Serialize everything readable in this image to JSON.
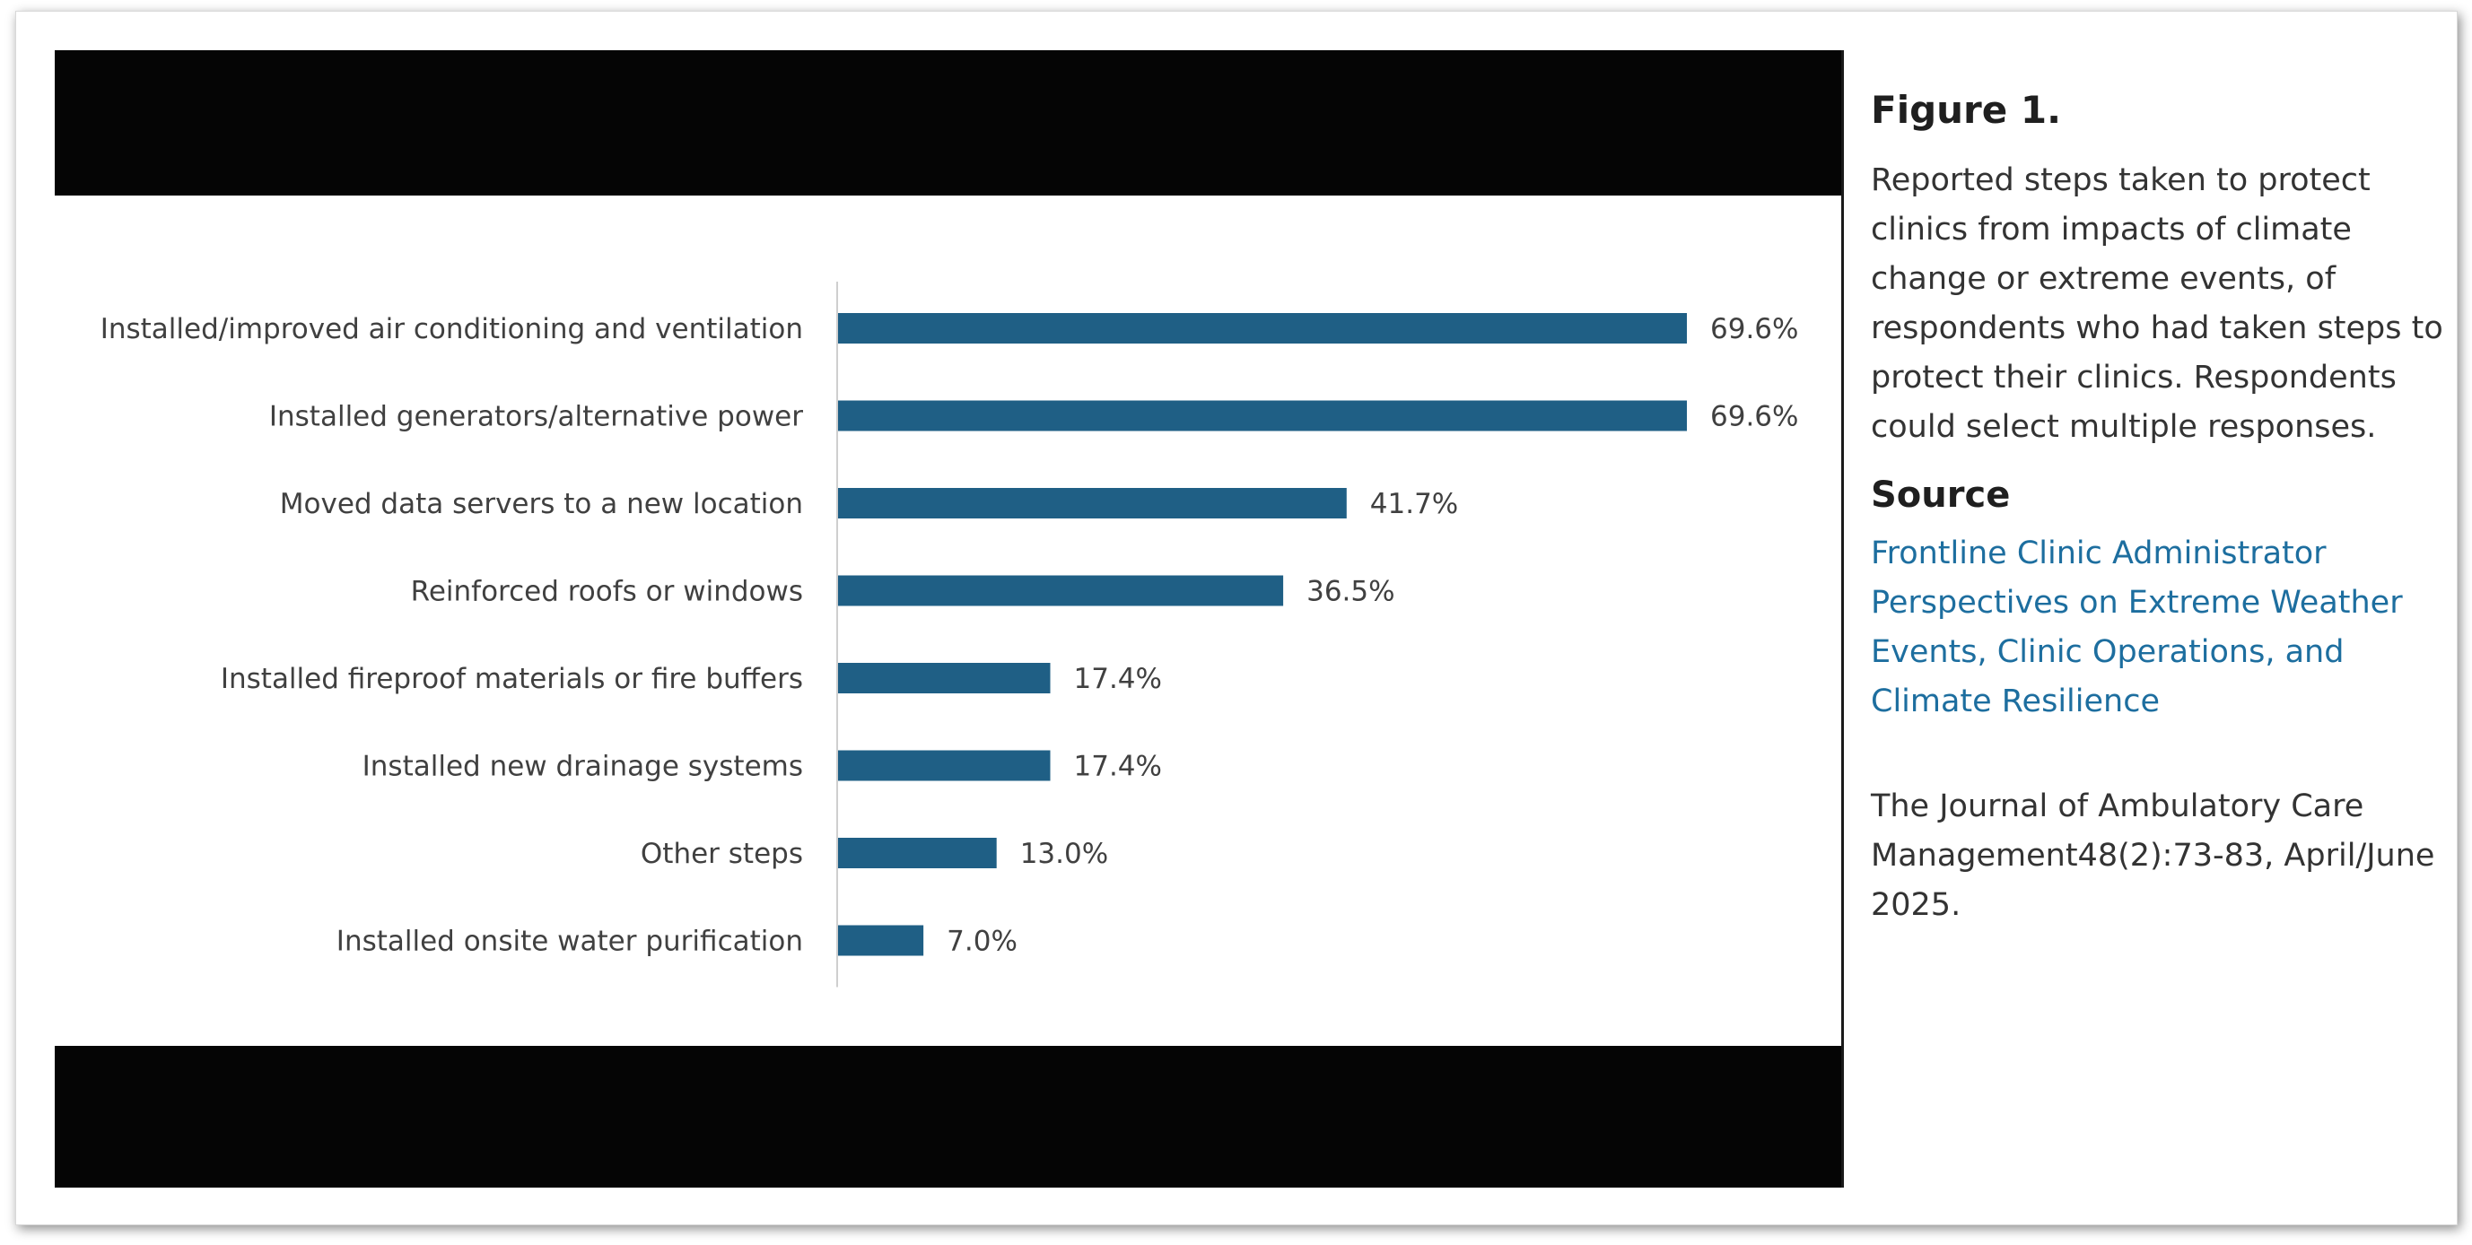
{
  "figure": {
    "title": "Figure 1.",
    "caption": "Reported steps taken to protect clinics from impacts of climate change or extreme events, of respondents who had taken steps to protect their clinics. Respondents could select multiple responses.",
    "source_heading": "Source",
    "source_link": "Frontline Clinic Administrator Perspectives on Extreme Weather Events, Clinic Operations, and Climate Resilience",
    "journal": "The Journal of Ambulatory Care Management48(2):73-83, April/June 2025."
  },
  "colors": {
    "bar": "#1f5f85",
    "band": "#050505",
    "link": "#1d6e9f"
  },
  "chart_data": {
    "type": "bar",
    "orientation": "horizontal",
    "categories": [
      "Installed/improved air conditioning and ventilation",
      "Installed generators/alternative power",
      "Moved data servers to a new location",
      "Reinforced roofs or windows",
      "Installed fireproof materials or fire buffers",
      "Installed new drainage systems",
      "Other steps",
      "Installed onsite water purification"
    ],
    "values": [
      69.6,
      69.6,
      41.7,
      36.5,
      17.4,
      17.4,
      13.0,
      7.0
    ],
    "value_labels": [
      "69.6%",
      "69.6%",
      "41.7%",
      "36.5%",
      "17.4%",
      "17.4%",
      "13.0%",
      "7.0%"
    ],
    "unit": "%",
    "xlim": [
      0,
      69.6
    ],
    "grid": false,
    "legend": "none"
  }
}
